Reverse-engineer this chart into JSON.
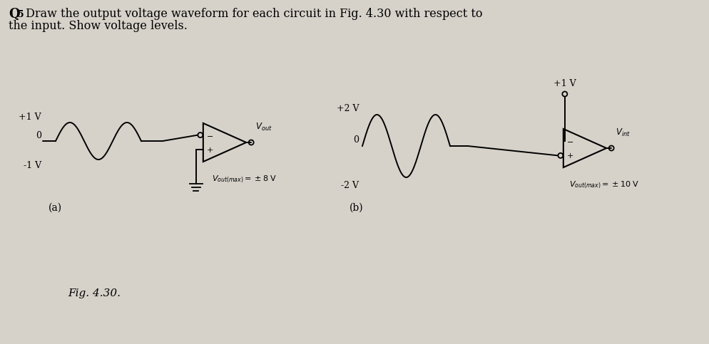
{
  "bg_color": "#d6d2ca",
  "title_Q": "Q",
  "title_5": "5",
  "title_rest": " Draw the output voltage waveform for each circuit in Fig. 4.30 with respect to",
  "title_line2": "the input. Show voltage levels.",
  "fig_caption": "Fig. 4.30.",
  "label_a": "(a)",
  "label_b": "(b)",
  "wave_a_plus": "+1 V",
  "wave_a_zero": "0",
  "wave_a_minus": "-1 V",
  "vout_a": "V_{out}",
  "supply_a": "V_{out(max)} = \\pm 8 V",
  "wave_b_plus": "+2 V",
  "wave_b_zero": "0",
  "wave_b_minus": "-2 V",
  "dc_b": "+1 V",
  "vout_b": "V_{int}",
  "supply_b": "V_{out(max)} = \\pm 10 V"
}
